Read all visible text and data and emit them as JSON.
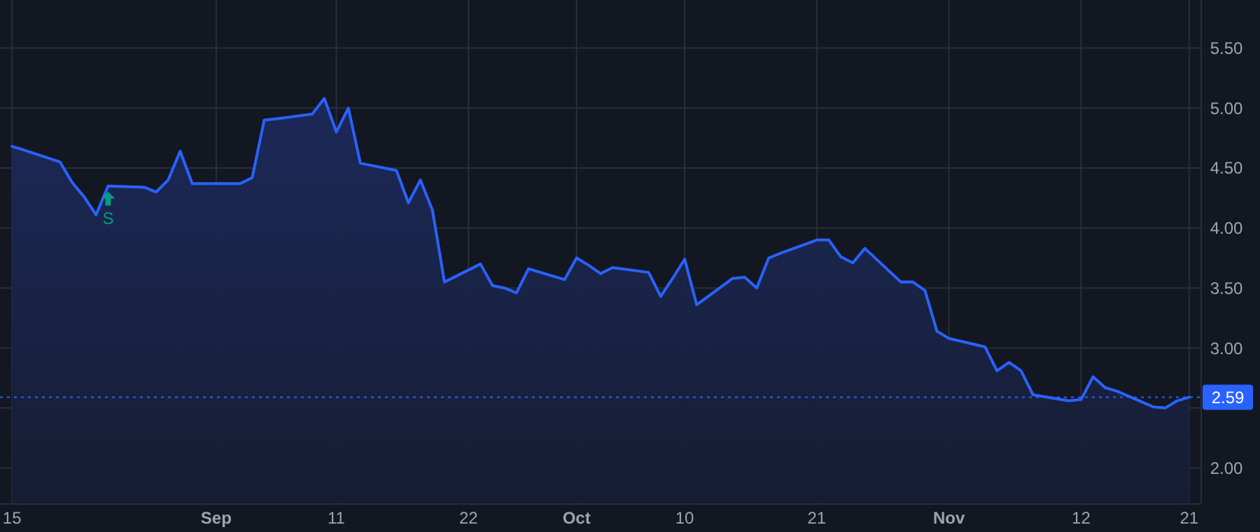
{
  "chart_data": {
    "type": "area",
    "x": [
      "--08-15",
      "--08-16",
      "--08-19",
      "--08-20",
      "--08-21",
      "--08-22",
      "--08-23",
      "--08-26",
      "--08-27",
      "--08-28",
      "--08-29",
      "--08-30",
      "--09-03",
      "--09-04",
      "--09-05",
      "--09-06",
      "--09-09",
      "--09-10",
      "--09-11",
      "--09-12",
      "--09-13",
      "--09-16",
      "--09-17",
      "--09-18",
      "--09-19",
      "--09-20",
      "--09-23",
      "--09-24",
      "--09-25",
      "--09-26",
      "--09-27",
      "--09-30",
      "--10-01",
      "--10-02",
      "--10-03",
      "--10-04",
      "--10-07",
      "--10-08",
      "--10-09",
      "--10-10",
      "--10-11",
      "--10-14",
      "--10-15",
      "--10-16",
      "--10-17",
      "--10-18",
      "--10-21",
      "--10-22",
      "--10-23",
      "--10-24",
      "--10-25",
      "--10-28",
      "--10-29",
      "--10-30",
      "--10-31",
      "--11-01",
      "--11-04",
      "--11-05",
      "--11-06",
      "--11-07",
      "--11-08",
      "--11-11",
      "--11-12",
      "--11-13",
      "--11-14",
      "--11-15",
      "--11-18",
      "--11-19",
      "--11-20",
      "--11-21"
    ],
    "series": [
      {
        "color": "#2962ff",
        "values": [
          4.68,
          4.65,
          4.55,
          4.38,
          4.26,
          4.11,
          4.35,
          4.34,
          4.3,
          4.4,
          4.64,
          4.37,
          4.37,
          4.42,
          4.9,
          4.91,
          4.95,
          5.08,
          4.8,
          5.0,
          4.54,
          4.48,
          4.21,
          4.4,
          4.15,
          3.55,
          3.7,
          3.52,
          3.5,
          3.46,
          3.66,
          3.57,
          3.75,
          3.69,
          3.62,
          3.67,
          3.63,
          3.43,
          3.58,
          3.74,
          3.36,
          3.58,
          3.59,
          3.5,
          3.75,
          3.79,
          3.9,
          3.9,
          3.76,
          3.71,
          3.83,
          3.55,
          3.55,
          3.48,
          3.14,
          3.08,
          3.01,
          2.81,
          2.88,
          2.81,
          2.61,
          2.56,
          2.57,
          2.76,
          2.67,
          2.64,
          2.51,
          2.5,
          2.56,
          2.59
        ]
      }
    ],
    "xlim": [
      "--08-14",
      "--11-22"
    ],
    "xticks": [
      {
        "value": "--08-15",
        "label": "15"
      },
      {
        "value": "--09-01",
        "label": "Sep"
      },
      {
        "value": "--09-11",
        "label": "11"
      },
      {
        "value": "--09-22",
        "label": "22"
      },
      {
        "value": "--10-01",
        "label": "Oct"
      },
      {
        "value": "--10-10",
        "label": "10"
      },
      {
        "value": "--10-21",
        "label": "21"
      },
      {
        "value": "--11-01",
        "label": "Nov"
      },
      {
        "value": "--11-12",
        "label": "12"
      },
      {
        "value": "--11-21",
        "label": "21"
      }
    ],
    "ylim": [
      1.7,
      5.9
    ],
    "yticks": [
      {
        "value": 2,
        "label": "2.00"
      },
      {
        "value": 2.5,
        "label": null
      },
      {
        "value": 3,
        "label": "3.00"
      },
      {
        "value": 3.5,
        "label": "3.50"
      },
      {
        "value": 4,
        "label": "4.00"
      },
      {
        "value": 4.5,
        "label": "4.50"
      },
      {
        "value": 5,
        "label": "5.00"
      },
      {
        "value": 5.5,
        "label": "5.50"
      }
    ],
    "grid": true,
    "ref_lines": [
      {
        "axis": "y",
        "value": 2.59,
        "label": "2.59",
        "color": "#2962ff",
        "line_style": "dotted"
      }
    ],
    "annotations": [
      {
        "text": "S",
        "x": "--08-23",
        "y": 4.35
      }
    ]
  }
}
